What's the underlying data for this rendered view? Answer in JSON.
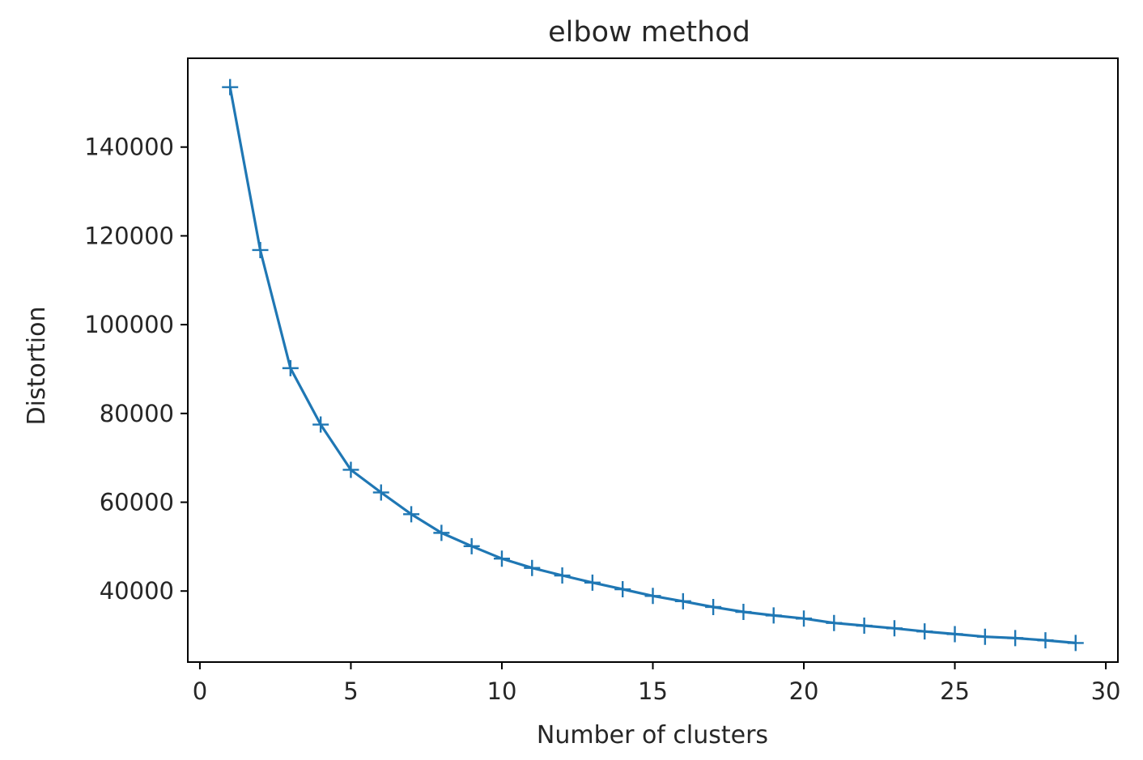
{
  "chart_data": {
    "type": "line",
    "title": "elbow method",
    "xlabel": "Number of clusters",
    "ylabel": "Distortion",
    "xlim": [
      -0.4,
      30.4
    ],
    "ylim": [
      24000,
      160000
    ],
    "xticks": [
      0,
      5,
      10,
      15,
      20,
      25,
      30
    ],
    "xtick_labels": [
      "0",
      "5",
      "10",
      "15",
      "20",
      "25",
      "30"
    ],
    "yticks": [
      40000,
      60000,
      80000,
      100000,
      120000,
      140000
    ],
    "ytick_labels": [
      "40000",
      "60000",
      "80000",
      "100000",
      "120000",
      "140000"
    ],
    "grid": false,
    "marker": "+",
    "color": "#1f77b4",
    "series": [
      {
        "x": [
          1,
          2,
          3,
          4,
          5,
          6,
          7,
          8,
          9,
          10,
          11,
          12,
          13,
          14,
          15,
          16,
          17,
          18,
          19,
          20,
          21,
          22,
          23,
          24,
          25,
          26,
          27,
          28,
          29
        ],
        "values": [
          153500,
          116800,
          90200,
          77500,
          67300,
          62200,
          57300,
          53100,
          50100,
          47300,
          45200,
          43500,
          41900,
          40400,
          38900,
          37700,
          36400,
          35300,
          34500,
          33800,
          32800,
          32200,
          31600,
          30900,
          30300,
          29700,
          29400,
          28900,
          28300
        ]
      }
    ]
  }
}
